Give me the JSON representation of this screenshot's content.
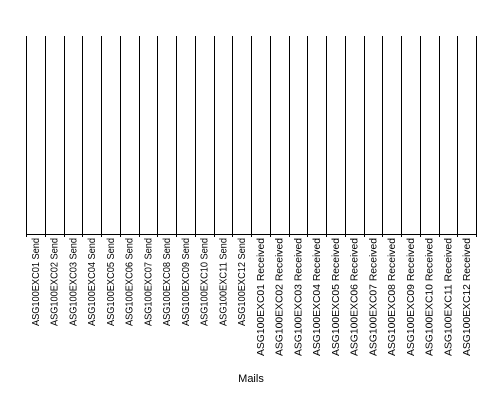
{
  "chart_data": {
    "type": "bar",
    "xlabel": "Mails",
    "ylabel": "",
    "title": "",
    "grid": true,
    "categories": [
      "ASG100EXC01 Send",
      "ASG100EXC02 Send",
      "ASG100EXC03 Send",
      "ASG100EXC04 Send",
      "ASG100EXC05 Send",
      "ASG100EXC06 Send",
      "ASG100EXC07 Send",
      "ASG100EXC08 Send",
      "ASG100EXC09 Send",
      "ASG100EXC10 Send",
      "ASG100EXC11 Send",
      "ASG100EXC12 Send",
      "ASG100EXC01 Received",
      "ASG100EXC02 Received",
      "ASG100EXC03 Received",
      "ASG100EXC04 Received",
      "ASG100EXC05 Received",
      "ASG100EXC06 Received",
      "ASG100EXC07 Received",
      "ASG100EXC08 Received",
      "ASG100EXC09 Received",
      "ASG100EXC10 Received",
      "ASG100EXC11 Received",
      "ASG100EXC12 Received"
    ],
    "colors": {
      "axis": "#000000",
      "grid": "#000000",
      "background": "#ffffff"
    }
  }
}
